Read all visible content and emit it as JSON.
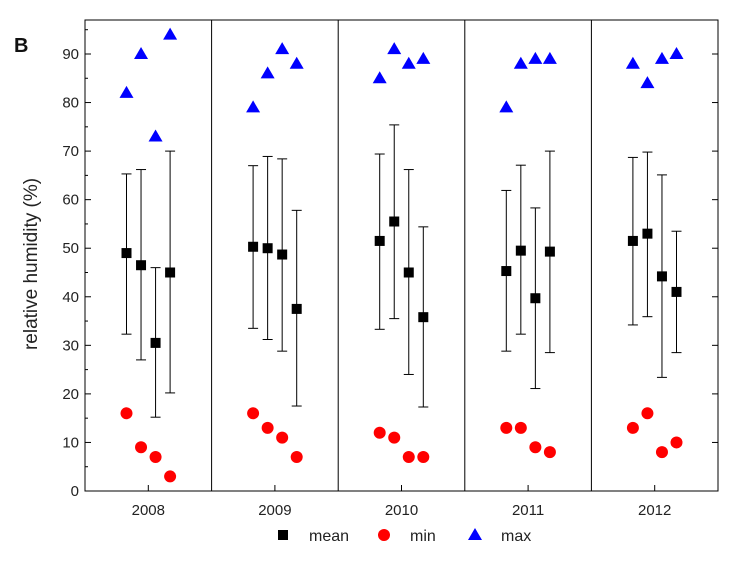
{
  "panel_label": "B",
  "chart_data": {
    "type": "scatter",
    "panel_label": "B",
    "ylabel": "relative humidity (%)",
    "xlabel": "",
    "ylim": [
      0,
      97
    ],
    "yticks": [
      0,
      10,
      20,
      30,
      40,
      50,
      60,
      70,
      80,
      90
    ],
    "categories": [
      "2008",
      "2009",
      "2010",
      "2011",
      "2012"
    ],
    "points_per_group": 4,
    "grid": false,
    "legend_position": "bottom",
    "legend": [
      "mean",
      "min",
      "max"
    ],
    "colors": {
      "mean": "#000000",
      "min": "#ff0000",
      "max": "#0000ff",
      "errorbar": "#000000"
    },
    "series": [
      {
        "name": "mean",
        "marker": "square",
        "values": [
          [
            49,
            46.5,
            30.5,
            45
          ],
          [
            50.3,
            50,
            48.7,
            37.5
          ],
          [
            51.5,
            55.5,
            45,
            35.8
          ],
          [
            45.3,
            49.5,
            39.7,
            49.3
          ],
          [
            51.5,
            53,
            44.2,
            41
          ]
        ],
        "error_low": [
          [
            32.3,
            27,
            15.2,
            20.2
          ],
          [
            33.5,
            31.2,
            28.8,
            17.5
          ],
          [
            33.3,
            35.5,
            24,
            17.3
          ],
          [
            28.8,
            32.3,
            21.1,
            28.5
          ],
          [
            34.2,
            35.9,
            23.4,
            28.5
          ]
        ],
        "error_high": [
          [
            65.3,
            66.2,
            46,
            70
          ],
          [
            67,
            68.9,
            68.4,
            57.8
          ],
          [
            69.4,
            75.4,
            66.2,
            54.4
          ],
          [
            61.9,
            67.1,
            58.3,
            70
          ],
          [
            68.7,
            69.8,
            65.1,
            53.5
          ]
        ]
      },
      {
        "name": "min",
        "marker": "circle",
        "values": [
          [
            16,
            9,
            7,
            3
          ],
          [
            16,
            13,
            11,
            7
          ],
          [
            12,
            11,
            7,
            7
          ],
          [
            13,
            13,
            9,
            8
          ],
          [
            13,
            16,
            8,
            10
          ]
        ]
      },
      {
        "name": "max",
        "marker": "triangle",
        "values": [
          [
            82,
            90,
            73,
            94
          ],
          [
            79,
            86,
            91,
            88
          ],
          [
            85,
            91,
            88,
            89
          ],
          [
            79,
            88,
            89,
            89
          ],
          [
            88,
            84,
            89,
            90
          ]
        ]
      }
    ]
  }
}
